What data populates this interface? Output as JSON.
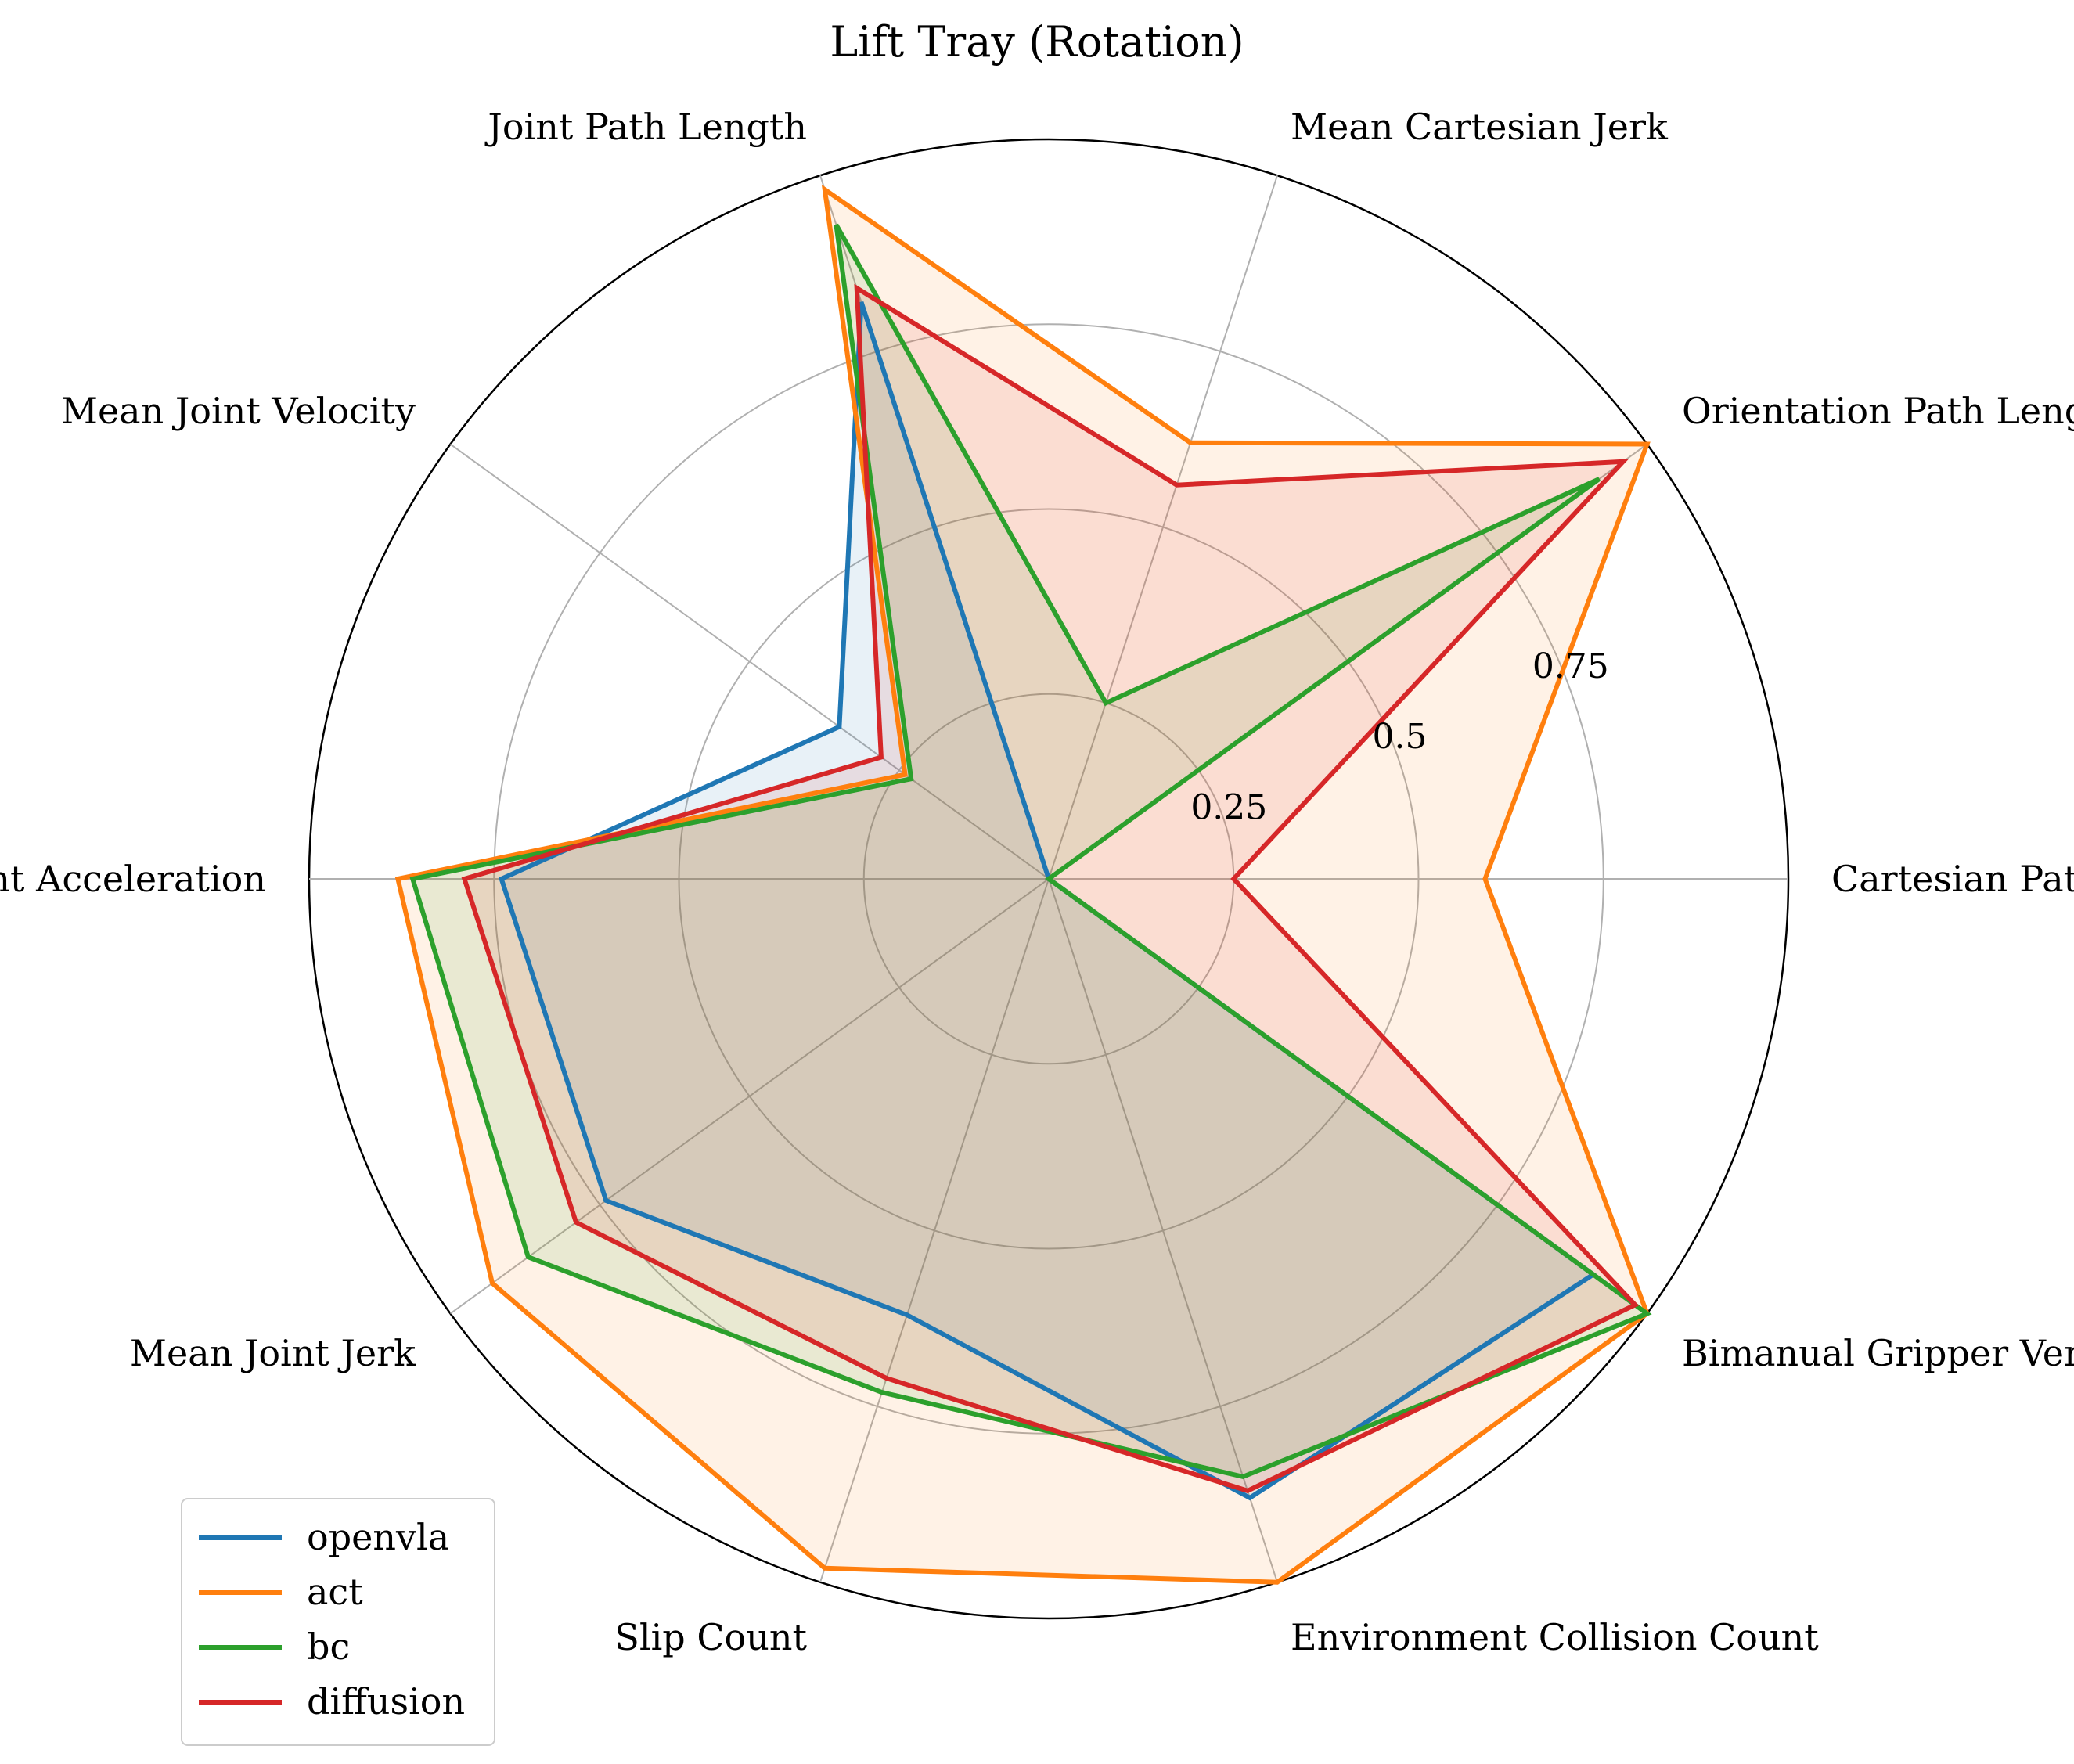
{
  "chart_data": {
    "type": "radar",
    "title": "Lift Tray (Rotation)",
    "axes": [
      "Cartesian Path Length",
      "Orientation Path Length",
      "Mean Cartesian Jerk",
      "Joint Path Length",
      "Mean Joint Velocity",
      "Mean Joint Acceleration",
      "Mean Joint Jerk",
      "Slip Count",
      "Environment Collision Count",
      "Bimanual Gripper Vertical Difference"
    ],
    "rlim": [
      0,
      1
    ],
    "rticks": [
      0.25,
      0.5,
      0.75,
      1.0
    ],
    "rtick_labels": [
      "0.25",
      "0.5",
      "0.75",
      ""
    ],
    "grid": true,
    "legend_position": "bottom-left",
    "series": [
      {
        "name": "openvla",
        "color": "#1f77b4",
        "values": [
          0.0,
          0.0,
          0.0,
          0.82,
          0.35,
          0.74,
          0.74,
          0.62,
          0.88,
          0.91
        ]
      },
      {
        "name": "act",
        "color": "#ff7f0e",
        "values": [
          0.59,
          1.0,
          0.62,
          0.98,
          0.24,
          0.88,
          0.93,
          0.98,
          1.0,
          1.0
        ]
      },
      {
        "name": "bc",
        "color": "#2ca02c",
        "values": [
          0.0,
          0.92,
          0.25,
          0.93,
          0.23,
          0.86,
          0.87,
          0.73,
          0.85,
          1.0
        ]
      },
      {
        "name": "diffusion",
        "color": "#d62728",
        "values": [
          0.25,
          0.96,
          0.56,
          0.84,
          0.28,
          0.79,
          0.79,
          0.71,
          0.87,
          0.98
        ]
      }
    ]
  }
}
